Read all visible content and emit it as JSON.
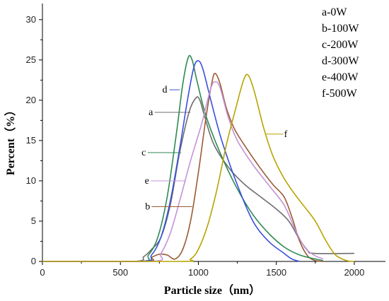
{
  "chart_data": {
    "type": "line",
    "xlabel": "Particle size（nm）",
    "ylabel": "Percent（%）",
    "xlim": [
      0,
      2200
    ],
    "ylim": [
      0,
      32
    ],
    "xticks": [
      0,
      500,
      1000,
      1500,
      2000
    ],
    "yticks": [
      0,
      5,
      10,
      15,
      20,
      25,
      30
    ],
    "legend_position": "top-right",
    "legend": [
      "a-0W",
      "b-100W",
      "c-200W",
      "d-300W",
      "e-400W",
      "f-500W"
    ],
    "series": [
      {
        "name": "a",
        "color": "#6e6e6e",
        "points": [
          [
            0,
            0
          ],
          [
            580,
            0
          ],
          [
            650,
            0.6
          ],
          [
            700,
            1.5
          ],
          [
            760,
            3
          ],
          [
            820,
            7
          ],
          [
            880,
            13.5
          ],
          [
            940,
            18.5
          ],
          [
            985,
            20.3
          ],
          [
            1010,
            20
          ],
          [
            1040,
            18
          ],
          [
            1100,
            14.5
          ],
          [
            1200,
            11.5
          ],
          [
            1300,
            9.5
          ],
          [
            1400,
            8
          ],
          [
            1500,
            6.5
          ],
          [
            1580,
            5
          ],
          [
            1650,
            2.7
          ],
          [
            1700,
            1.4
          ],
          [
            1740,
            1
          ],
          [
            2000,
            1
          ]
        ]
      },
      {
        "name": "b",
        "color": "#9b5a32",
        "points": [
          [
            0,
            0
          ],
          [
            650,
            0
          ],
          [
            700,
            0.5
          ],
          [
            750,
            0.9
          ],
          [
            800,
            0.8
          ],
          [
            850,
            0.3
          ],
          [
            900,
            1.5
          ],
          [
            950,
            5
          ],
          [
            1000,
            11
          ],
          [
            1050,
            18
          ],
          [
            1090,
            22.5
          ],
          [
            1110,
            23.3
          ],
          [
            1140,
            22
          ],
          [
            1180,
            19
          ],
          [
            1230,
            16.5
          ],
          [
            1300,
            14.3
          ],
          [
            1400,
            11.5
          ],
          [
            1480,
            9.5
          ],
          [
            1550,
            8
          ],
          [
            1600,
            5.5
          ],
          [
            1650,
            2.5
          ],
          [
            1700,
            0.7
          ],
          [
            1750,
            0.1
          ],
          [
            1800,
            0
          ]
        ]
      },
      {
        "name": "c",
        "color": "#2e8a52",
        "points": [
          [
            0,
            0
          ],
          [
            620,
            0
          ],
          [
            680,
            0.8
          ],
          [
            740,
            3
          ],
          [
            800,
            8
          ],
          [
            860,
            16
          ],
          [
            900,
            22
          ],
          [
            935,
            25.3
          ],
          [
            960,
            25
          ],
          [
            990,
            22.5
          ],
          [
            1050,
            18
          ],
          [
            1150,
            13
          ],
          [
            1250,
            9
          ],
          [
            1350,
            5.8
          ],
          [
            1450,
            3.5
          ],
          [
            1550,
            1.8
          ],
          [
            1650,
            0.8
          ],
          [
            1750,
            0.3
          ],
          [
            1800,
            0.1
          ]
        ]
      },
      {
        "name": "d",
        "color": "#3a4fe0",
        "points": [
          [
            0,
            0
          ],
          [
            630,
            0
          ],
          [
            700,
            0.8
          ],
          [
            760,
            3
          ],
          [
            820,
            7.5
          ],
          [
            880,
            14
          ],
          [
            930,
            20
          ],
          [
            970,
            24
          ],
          [
            1000,
            24.9
          ],
          [
            1030,
            23.8
          ],
          [
            1080,
            20
          ],
          [
            1150,
            15
          ],
          [
            1250,
            9.5
          ],
          [
            1350,
            5
          ],
          [
            1450,
            2.5
          ],
          [
            1550,
            1
          ],
          [
            1600,
            0.3
          ],
          [
            1650,
            0
          ]
        ]
      },
      {
        "name": "e",
        "color": "#c493d8",
        "points": [
          [
            0,
            0
          ],
          [
            700,
            0
          ],
          [
            760,
            1
          ],
          [
            820,
            3.5
          ],
          [
            880,
            7.5
          ],
          [
            950,
            12.5
          ],
          [
            1020,
            17
          ],
          [
            1080,
            21.5
          ],
          [
            1110,
            22.3
          ],
          [
            1140,
            21.5
          ],
          [
            1190,
            18
          ],
          [
            1250,
            15
          ],
          [
            1350,
            12
          ],
          [
            1450,
            9.5
          ],
          [
            1550,
            7
          ],
          [
            1620,
            4
          ],
          [
            1680,
            1.8
          ],
          [
            1740,
            0.8
          ],
          [
            1800,
            0.3
          ]
        ]
      },
      {
        "name": "f",
        "color": "#b8a300",
        "points": [
          [
            0,
            0
          ],
          [
            880,
            0
          ],
          [
            950,
            0.3
          ],
          [
            1000,
            1.5
          ],
          [
            1060,
            4.5
          ],
          [
            1120,
            9
          ],
          [
            1180,
            14.5
          ],
          [
            1240,
            19
          ],
          [
            1290,
            22.5
          ],
          [
            1320,
            23.1
          ],
          [
            1360,
            21
          ],
          [
            1420,
            16.5
          ],
          [
            1480,
            13
          ],
          [
            1550,
            10.3
          ],
          [
            1620,
            8.3
          ],
          [
            1680,
            6.8
          ],
          [
            1750,
            5
          ],
          [
            1820,
            2.5
          ],
          [
            1880,
            0.8
          ],
          [
            1950,
            0.1
          ],
          [
            2000,
            0
          ]
        ]
      }
    ],
    "annotations": [
      {
        "text": "d",
        "series": "d",
        "label_at": [
          785,
          21.3
        ],
        "line_from": [
          815,
          21.3
        ],
        "line_to": [
          880,
          21.3
        ]
      },
      {
        "text": "a",
        "series": "a",
        "label_at": [
          695,
          18.5
        ],
        "line_from": [
          720,
          18.5
        ],
        "line_to": [
          950,
          18.5
        ]
      },
      {
        "text": "c",
        "series": "c",
        "label_at": [
          650,
          13.5
        ],
        "line_from": [
          675,
          13.5
        ],
        "line_to": [
          890,
          13.5
        ]
      },
      {
        "text": "e",
        "series": "e",
        "label_at": [
          670,
          10
        ],
        "line_from": [
          695,
          10
        ],
        "line_to": [
          920,
          10
        ]
      },
      {
        "text": "b",
        "series": "b",
        "label_at": [
          675,
          6.8
        ],
        "line_from": [
          700,
          6.8
        ],
        "line_to": [
          960,
          6.8
        ]
      },
      {
        "text": "f",
        "series": "f",
        "label_at": [
          1560,
          15.8
        ],
        "line_from": [
          1430,
          15.8
        ],
        "line_to": [
          1545,
          15.8
        ]
      }
    ]
  }
}
